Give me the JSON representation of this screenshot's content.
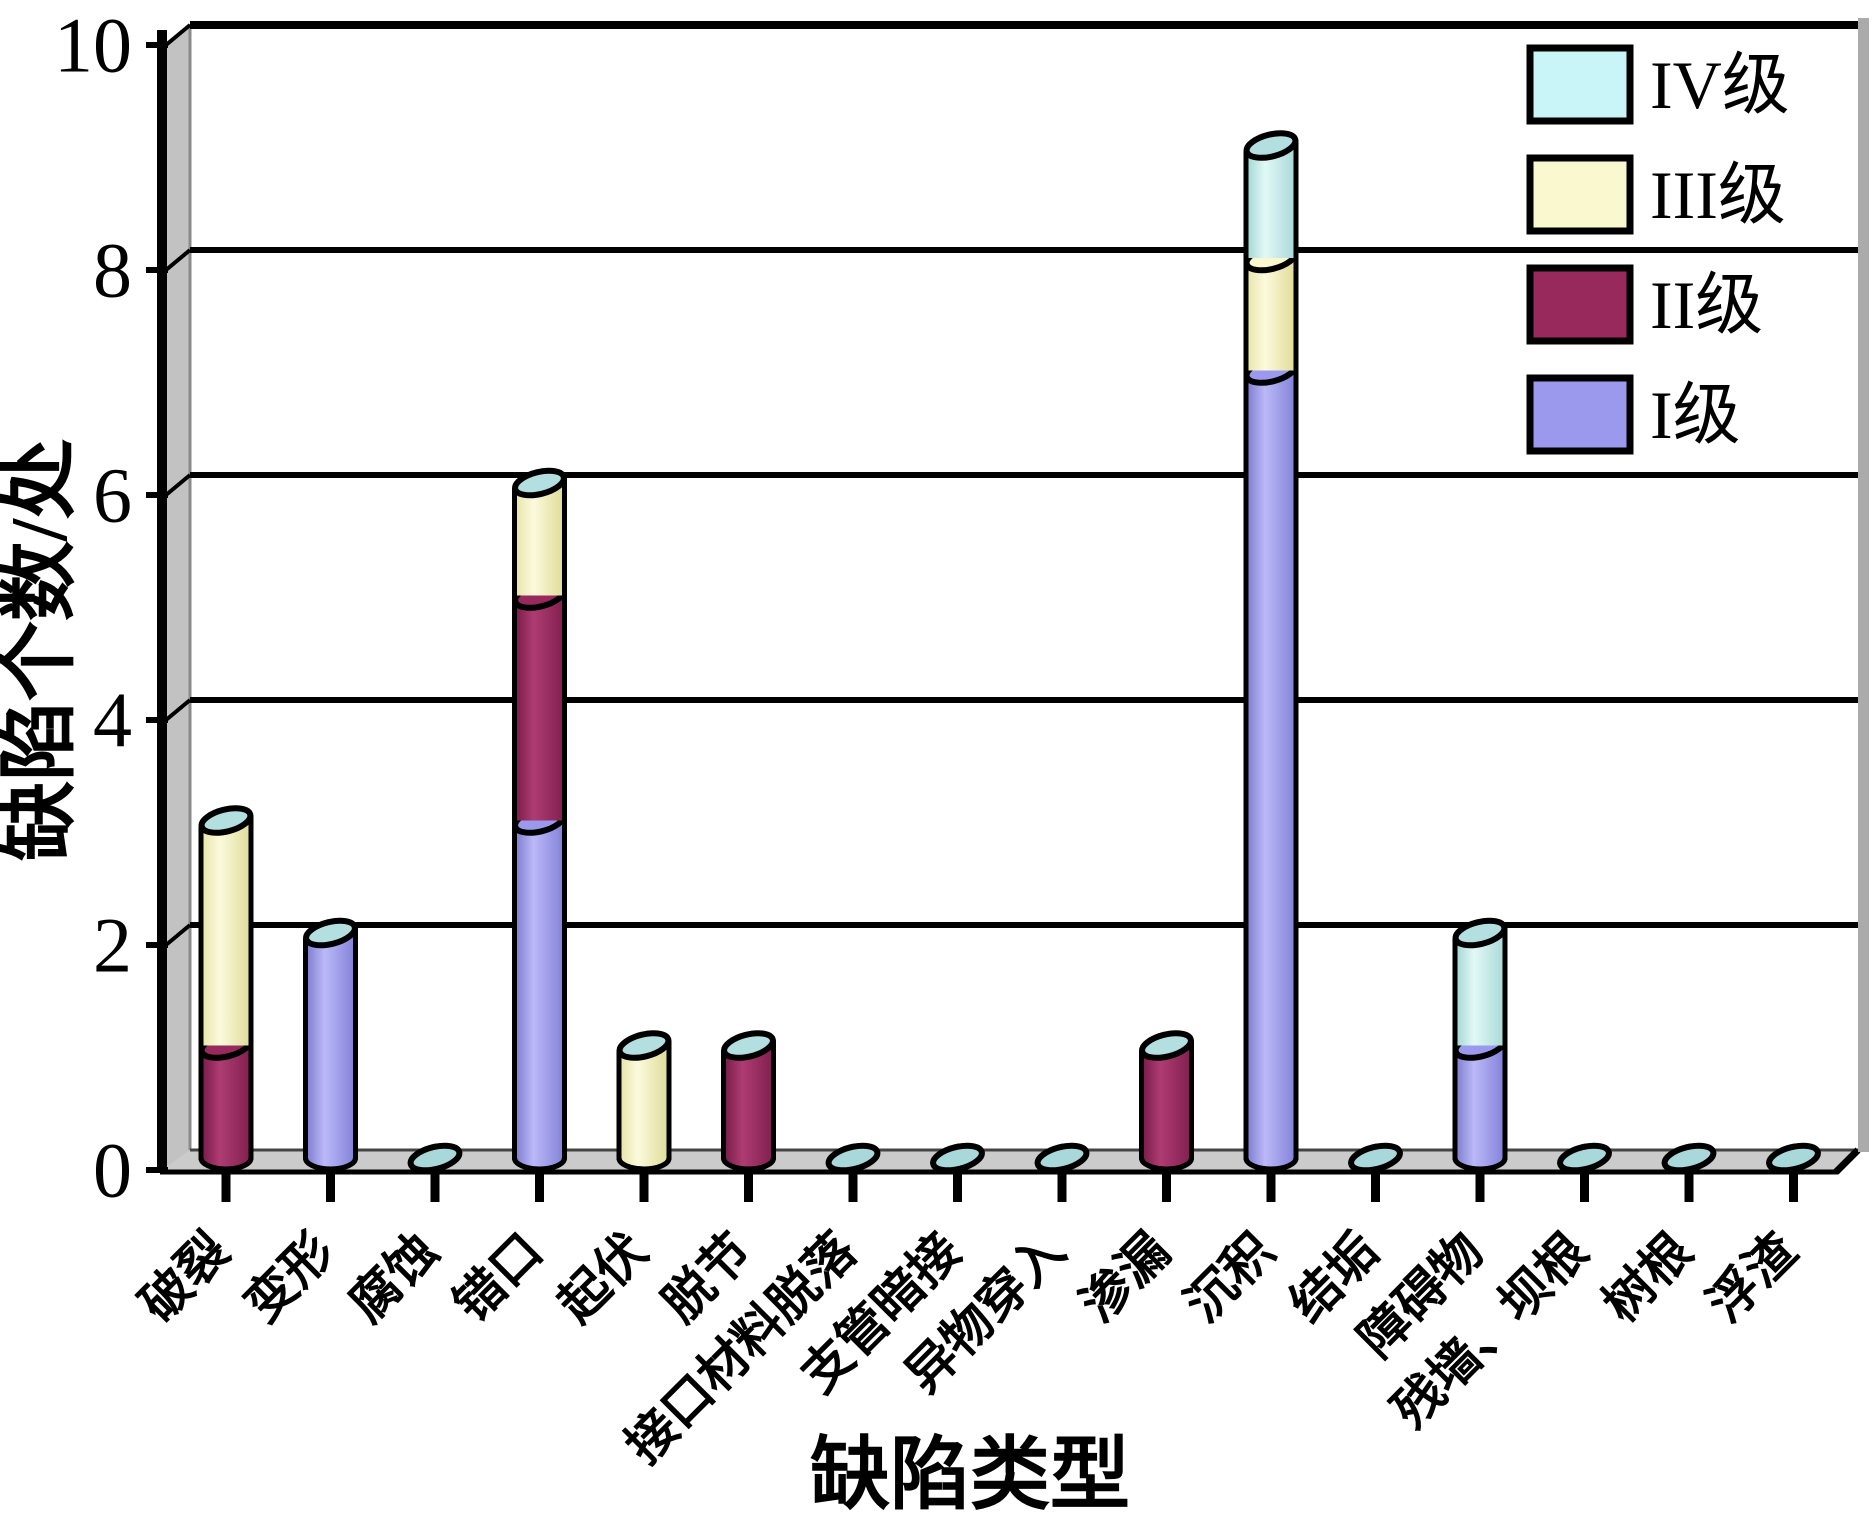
{
  "chart_data": {
    "type": "bar",
    "stacked": true,
    "style": "3d-cylinder",
    "title": "",
    "xlabel": "缺陷类型",
    "ylabel": "缺陷个数/处",
    "ylim": [
      0,
      10
    ],
    "yticks": [
      0,
      2,
      4,
      6,
      8,
      10
    ],
    "ytick_labels": [
      "0",
      "2",
      "4",
      "6",
      "8",
      "10"
    ],
    "grid": "horizontal",
    "legend_position": "top-right-inside",
    "categories": [
      "破裂",
      "变形",
      "腐蚀",
      "错口",
      "起伏",
      "脱节",
      "接口材料脱落",
      "支管暗接",
      "异物穿入",
      "渗漏",
      "沉积",
      "结垢",
      "障碍物",
      "残墙、坝根",
      "树根",
      "浮渣"
    ],
    "series": [
      {
        "name": "I级",
        "color": "#9B99EE",
        "gradient": [
          "#7B79CC",
          "#BBB9F8",
          "#8280D8"
        ],
        "values": [
          0,
          2,
          0,
          3,
          0,
          0,
          0,
          0,
          0,
          0,
          7,
          0,
          1,
          0,
          0,
          0
        ]
      },
      {
        "name": "II级",
        "color": "#97295C",
        "gradient": [
          "#751A46",
          "#AE3C72",
          "#801F4E"
        ],
        "values": [
          1,
          0,
          0,
          2,
          0,
          1,
          0,
          0,
          0,
          1,
          0,
          0,
          0,
          0,
          0,
          0
        ]
      },
      {
        "name": "III级",
        "color": "#FAF8CE",
        "gradient": [
          "#E6E3A6",
          "#FCFADD",
          "#DEDB96"
        ],
        "values": [
          2,
          0,
          0,
          1,
          1,
          0,
          0,
          0,
          0,
          0,
          1,
          0,
          0,
          0,
          0,
          0
        ]
      },
      {
        "name": "IV级",
        "color": "#C9F4F8",
        "gradient": [
          "#9FD4D2",
          "#E2F9F6",
          "#A5D8D6"
        ],
        "values": [
          0,
          0,
          0,
          0,
          0,
          0,
          0,
          0,
          0,
          0,
          1,
          0,
          1,
          0,
          0,
          0
        ]
      }
    ],
    "legend": {
      "order": [
        "IV级",
        "III级",
        "II级",
        "I级"
      ]
    },
    "colors": {
      "cap": "#B3DFE0",
      "zero_marker": "#A9D8DA",
      "wall": "#C2C2C2",
      "wall_edge": "#8A8A8A",
      "floor": "#CBCBCB",
      "right_strip": "#ABABAB",
      "outline": "#000000",
      "background": "#FFFFFF"
    }
  }
}
